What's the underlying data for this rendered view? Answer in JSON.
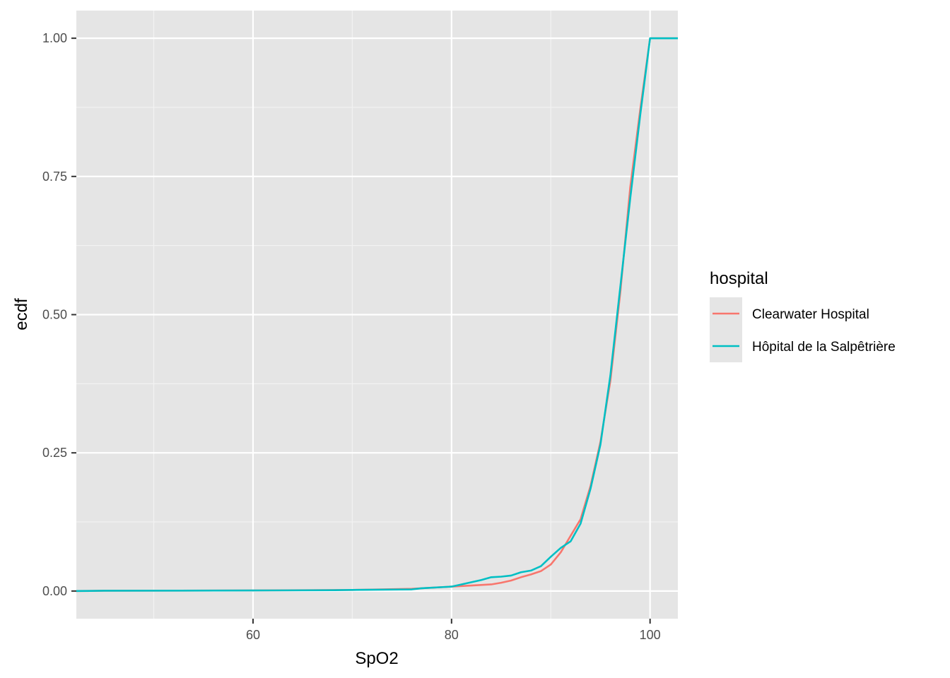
{
  "chart_data": {
    "type": "line",
    "title": "",
    "xlabel": "SpO2",
    "ylabel": "ecdf",
    "xlim": [
      42.2,
      102.8
    ],
    "ylim": [
      -0.05,
      1.05
    ],
    "x_ticks": [
      60,
      80,
      100
    ],
    "x_tick_labels": [
      "60",
      "80",
      "100"
    ],
    "x_minor_ticks": [
      50,
      70,
      90
    ],
    "y_ticks": [
      0,
      0.25,
      0.5,
      0.75,
      1
    ],
    "y_tick_labels": [
      "0.00",
      "0.25",
      "0.50",
      "0.75",
      "1.00"
    ],
    "y_minor_ticks": [
      0.125,
      0.375,
      0.625,
      0.875
    ],
    "grid": true,
    "panel_background": "#e5e5e5",
    "legend": {
      "title": "hospital",
      "position": "right"
    },
    "series": [
      {
        "name": "Clearwater Hospital",
        "color": "#f8766d",
        "points": [
          [
            42.2,
            0.0
          ],
          [
            45,
            0.0005
          ],
          [
            60,
            0.001
          ],
          [
            70,
            0.002
          ],
          [
            76,
            0.004
          ],
          [
            77,
            0.005
          ],
          [
            80,
            0.008
          ],
          [
            82,
            0.01
          ],
          [
            84,
            0.012
          ],
          [
            85,
            0.015
          ],
          [
            86,
            0.019
          ],
          [
            87,
            0.025
          ],
          [
            88,
            0.03
          ],
          [
            89,
            0.036
          ],
          [
            90,
            0.048
          ],
          [
            91,
            0.07
          ],
          [
            92,
            0.1
          ],
          [
            93,
            0.13
          ],
          [
            94,
            0.19
          ],
          [
            95,
            0.27
          ],
          [
            96,
            0.38
          ],
          [
            97,
            0.54
          ],
          [
            98,
            0.73
          ],
          [
            99,
            0.87
          ],
          [
            100,
            1.0
          ],
          [
            102.8,
            1.0
          ]
        ]
      },
      {
        "name": "Hôpital de la Salpêtrière",
        "color": "#00bfc4",
        "points": [
          [
            42.2,
            0.0
          ],
          [
            45,
            0.0005
          ],
          [
            60,
            0.001
          ],
          [
            68,
            0.0015
          ],
          [
            70,
            0.002
          ],
          [
            76,
            0.003
          ],
          [
            77,
            0.005
          ],
          [
            80,
            0.008
          ],
          [
            81,
            0.012
          ],
          [
            82,
            0.016
          ],
          [
            83,
            0.02
          ],
          [
            84,
            0.025
          ],
          [
            85,
            0.026
          ],
          [
            86,
            0.028
          ],
          [
            87,
            0.034
          ],
          [
            88,
            0.037
          ],
          [
            89,
            0.045
          ],
          [
            90,
            0.062
          ],
          [
            91,
            0.078
          ],
          [
            92,
            0.09
          ],
          [
            93,
            0.122
          ],
          [
            94,
            0.185
          ],
          [
            95,
            0.265
          ],
          [
            96,
            0.39
          ],
          [
            97,
            0.55
          ],
          [
            98,
            0.71
          ],
          [
            99,
            0.86
          ],
          [
            100,
            1.0
          ],
          [
            102.8,
            1.0
          ]
        ]
      }
    ]
  }
}
